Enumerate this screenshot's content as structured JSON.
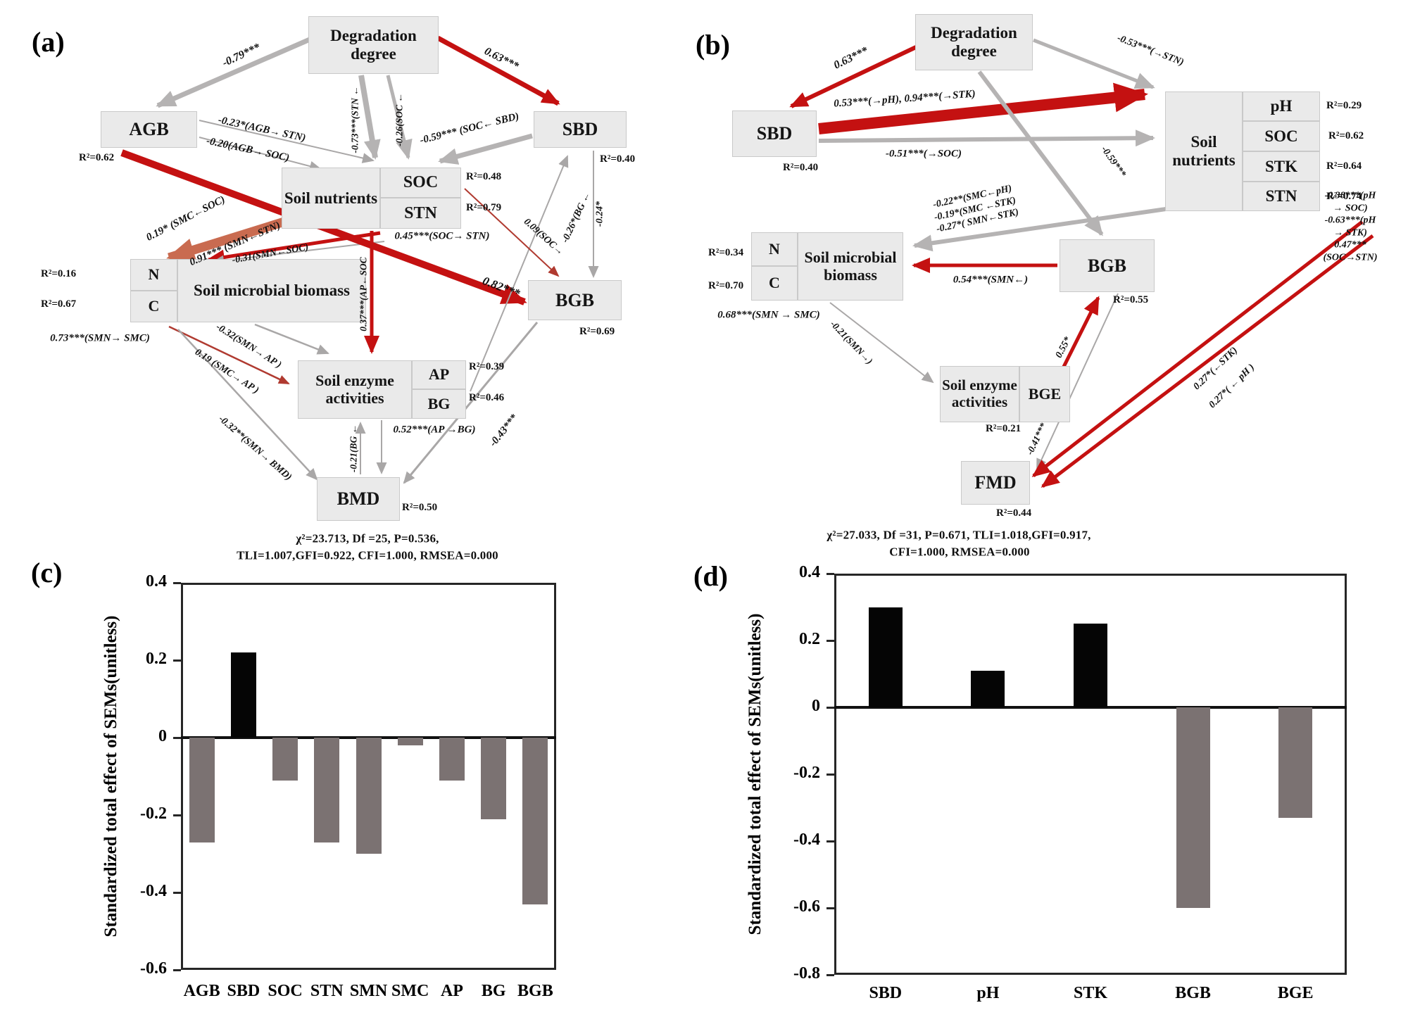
{
  "panel_a": {
    "tag": "(a)",
    "nodes": {
      "deg": "Degradation degree",
      "agb": "AGB",
      "sbd": "SBD",
      "sn": "Soil nutrients",
      "soc": "SOC",
      "stn": "STN",
      "smb": "Soil microbial biomass",
      "n": "N",
      "c": "C",
      "sea": "Soil enzyme activities",
      "ap": "AP",
      "bg": "BG",
      "bgb": "BGB",
      "bmd": "BMD"
    },
    "r2": {
      "agb": "R²=0.62",
      "sbd": "R²=0.40",
      "soc": "R²=0.48",
      "stn": "R²=0.79",
      "n": "R²=0.16",
      "c": "R²=0.67",
      "ap": "R²=0.39",
      "bg": "R²=0.46",
      "bgb": "R²=0.69",
      "bmd": "R²=0.50"
    },
    "edge_labels": {
      "deg_agb": "-0.79***",
      "deg_sbd": "0.63***",
      "agb_stn": "-0.23*(AGB→ STN)",
      "agb_soc": "-0.20(AGB→ SOC)",
      "deg_stn": "-0.73***(STN ←",
      "deg_soc": "-0.26(SOC ←",
      "sbd_soc": "-0.59*** (SOC← SBD)",
      "soc_stn": "0.45***(SOC→ STN)",
      "soc_smc": "0.19* (SMC←SOC)",
      "stn_smn": "0.91*** (SMN←STN)",
      "soc_smn": "-0.31(SMN←SOC)",
      "agb_bgb": "0.82***",
      "sbd_bg": "-0.26*(BG ←",
      "sbd_bgb": "-0.24*",
      "soc_bgb": "0.09(SOC→",
      "soc_ap": "0.37***(AP←SOC",
      "smn_ap": "-0.32(SMN→ AP )",
      "smc_ap": "0.19 (SMC→ AP )",
      "smn_smc": "0.73***(SMN→ SMC)",
      "smn_bmd": "-0.32**(SMN→ BMD)",
      "ap_bg": "0.52***(AP →BG)",
      "bmd_bg": "-0.21(BG ←",
      "bgb_bmd": "-0.43***"
    },
    "fit_line1": "χ²=23.713, Df =25, P=0.536,",
    "fit_line2": "TLI=1.007,GFI=0.922, CFI=1.000, RMSEA=0.000"
  },
  "panel_b": {
    "tag": "(b)",
    "nodes": {
      "deg": "Degradation degree",
      "sbd": "SBD",
      "sn": "Soil nutrients",
      "ph": "pH",
      "soc": "SOC",
      "stk": "STK",
      "stn": "STN",
      "smb": "Soil microbial biomass",
      "n": "N",
      "c": "C",
      "sea": "Soil enzyme activities",
      "bge": "BGE",
      "fmd": "FMD",
      "bgb": "BGB"
    },
    "r2": {
      "sbd": "R²=0.40",
      "ph": "R²=0.29",
      "soc": "R²=0.62",
      "stk": "R²=0.64",
      "stn": "R²=0.74",
      "n": "R²=0.34",
      "c": "R²=0.70",
      "bgb": "R²=0.55",
      "bge": "R²=0.21",
      "fmd": "R²=0.44"
    },
    "edge_labels": {
      "deg_sbd": "0.63***",
      "sbd_ph_stk": "0.53***(→pH), 0.94***(→STK)",
      "sbd_soc": "-0.51***(→SOC)",
      "deg_stn": "-0.53***(→STN)",
      "deg_bgb": "-0.59***",
      "sn_smb": "-0.22**(SMC←pH)\n-0.19*(SMC ←STK)\n-0.27*( SMN←STK)",
      "bgb_smb": "0.54***(SMN←)",
      "smn_smc": "0.68***(SMN → SMC)",
      "smb_sea": "-0.21(SMN→)",
      "bge_bgb": "0.55*",
      "bgb_fmd": "-0.41***",
      "stk_fmd": "0.27*(←STK)",
      "ph_fmd": "0.27*( ← pH )",
      "ph_soc_block": "-0.38***(pH → SOC)\n-0.63***(pH → STK)\n0.47***(SOC→STN)"
    },
    "fit_line1": "χ²=27.033, Df =31, P=0.671, TLI=1.018,GFI=0.917,",
    "fit_line2": "CFI=1.000, RMSEA=0.000"
  },
  "chart_data": [
    {
      "panel": "c",
      "tag": "(c)",
      "type": "bar",
      "categories": [
        "AGB",
        "SBD",
        "SOC",
        "STN",
        "SMN",
        "SMC",
        "AP",
        "BG",
        "BGB"
      ],
      "values": [
        -0.27,
        0.22,
        -0.11,
        -0.27,
        -0.3,
        -0.02,
        -0.11,
        -0.21,
        -0.43
      ],
      "title": "",
      "xlabel": "",
      "ylabel": "Standardized total effect of SEMs(unitless)",
      "ylim": [
        -0.6,
        0.4
      ],
      "yticks": [
        "0.4",
        "0.2",
        "0",
        "-0.2",
        "-0.4",
        "-0.6"
      ],
      "grid": false,
      "legend": false,
      "positive_color": "#050505",
      "negative_color": "#7b7272"
    },
    {
      "panel": "d",
      "tag": "(d)",
      "type": "bar",
      "categories": [
        "SBD",
        "pH",
        "STK",
        "BGB",
        "BGE"
      ],
      "values": [
        0.3,
        0.11,
        0.25,
        -0.6,
        -0.33
      ],
      "title": "",
      "xlabel": "",
      "ylabel": "Standardized total effect of  SEMs(unitless)",
      "ylim": [
        -0.8,
        0.4
      ],
      "yticks": [
        "0.4",
        "0.2",
        "0",
        "-0.2",
        "-0.4",
        "-0.6",
        "-0.8"
      ],
      "grid": false,
      "legend": false,
      "positive_color": "#050505",
      "negative_color": "#7b7272"
    }
  ],
  "colors": {
    "gray_arrow": "#b5b3b3",
    "gray_thin": "#a9a7a7",
    "red_arrow": "#c41111",
    "dark_red_thin": "#b03a30",
    "orange_arrow": "#c96b50",
    "box_fill": "#eaeaea"
  }
}
